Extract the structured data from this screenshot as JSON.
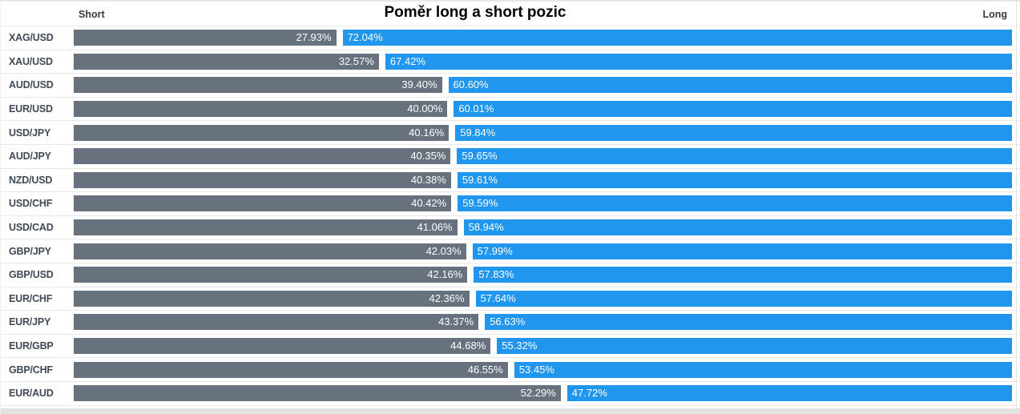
{
  "colors": {
    "short_bar": "#68717e",
    "long_bar": "#2196ee",
    "bar_text": "#ffffff",
    "pair_label_text": "#3e4a57",
    "separator": "#e8e8e8",
    "scrollbar_track": "#e2e2e2",
    "title_text": "#000000"
  },
  "chart_data": {
    "type": "bar",
    "variant": "horizontal-stacked",
    "title": "Poměr long a short pozic",
    "units": "percent",
    "xlim": [
      0,
      100
    ],
    "grid": false,
    "legend_position": "none",
    "column_headers": {
      "short": "Short",
      "long": "Long"
    },
    "categories": [
      "XAG/USD",
      "XAU/USD",
      "AUD/USD",
      "EUR/USD",
      "USD/JPY",
      "AUD/JPY",
      "NZD/USD",
      "USD/CHF",
      "USD/CAD",
      "GBP/JPY",
      "GBP/USD",
      "EUR/CHF",
      "EUR/JPY",
      "EUR/GBP",
      "GBP/CHF",
      "EUR/AUD"
    ],
    "series": [
      {
        "name": "Short",
        "values": [
          27.93,
          32.57,
          39.4,
          40.0,
          40.16,
          40.35,
          40.38,
          40.42,
          41.06,
          42.03,
          42.16,
          42.36,
          43.37,
          44.68,
          46.55,
          52.29
        ]
      },
      {
        "name": "Long",
        "values": [
          72.04,
          67.42,
          60.6,
          60.01,
          59.84,
          59.65,
          59.61,
          59.59,
          58.94,
          57.99,
          57.83,
          57.64,
          56.63,
          55.32,
          53.45,
          47.72
        ]
      }
    ],
    "rows": [
      {
        "pair": "XAG/USD",
        "short_pct": 27.93,
        "long_pct": 72.04,
        "short_label": "27.93%",
        "long_label": "72.04%"
      },
      {
        "pair": "XAU/USD",
        "short_pct": 32.57,
        "long_pct": 67.42,
        "short_label": "32.57%",
        "long_label": "67.42%"
      },
      {
        "pair": "AUD/USD",
        "short_pct": 39.4,
        "long_pct": 60.6,
        "short_label": "39.40%",
        "long_label": "60.60%"
      },
      {
        "pair": "EUR/USD",
        "short_pct": 40.0,
        "long_pct": 60.01,
        "short_label": "40.00%",
        "long_label": "60.01%"
      },
      {
        "pair": "USD/JPY",
        "short_pct": 40.16,
        "long_pct": 59.84,
        "short_label": "40.16%",
        "long_label": "59.84%"
      },
      {
        "pair": "AUD/JPY",
        "short_pct": 40.35,
        "long_pct": 59.65,
        "short_label": "40.35%",
        "long_label": "59.65%"
      },
      {
        "pair": "NZD/USD",
        "short_pct": 40.38,
        "long_pct": 59.61,
        "short_label": "40.38%",
        "long_label": "59.61%"
      },
      {
        "pair": "USD/CHF",
        "short_pct": 40.42,
        "long_pct": 59.59,
        "short_label": "40.42%",
        "long_label": "59.59%"
      },
      {
        "pair": "USD/CAD",
        "short_pct": 41.06,
        "long_pct": 58.94,
        "short_label": "41.06%",
        "long_label": "58.94%"
      },
      {
        "pair": "GBP/JPY",
        "short_pct": 42.03,
        "long_pct": 57.99,
        "short_label": "42.03%",
        "long_label": "57.99%"
      },
      {
        "pair": "GBP/USD",
        "short_pct": 42.16,
        "long_pct": 57.83,
        "short_label": "42.16%",
        "long_label": "57.83%"
      },
      {
        "pair": "EUR/CHF",
        "short_pct": 42.36,
        "long_pct": 57.64,
        "short_label": "42.36%",
        "long_label": "57.64%"
      },
      {
        "pair": "EUR/JPY",
        "short_pct": 43.37,
        "long_pct": 56.63,
        "short_label": "43.37%",
        "long_label": "56.63%"
      },
      {
        "pair": "EUR/GBP",
        "short_pct": 44.68,
        "long_pct": 55.32,
        "short_label": "44.68%",
        "long_label": "55.32%"
      },
      {
        "pair": "GBP/CHF",
        "short_pct": 46.55,
        "long_pct": 53.45,
        "short_label": "46.55%",
        "long_label": "53.45%"
      },
      {
        "pair": "EUR/AUD",
        "short_pct": 52.29,
        "long_pct": 47.72,
        "short_label": "52.29%",
        "long_label": "47.72%"
      }
    ]
  }
}
